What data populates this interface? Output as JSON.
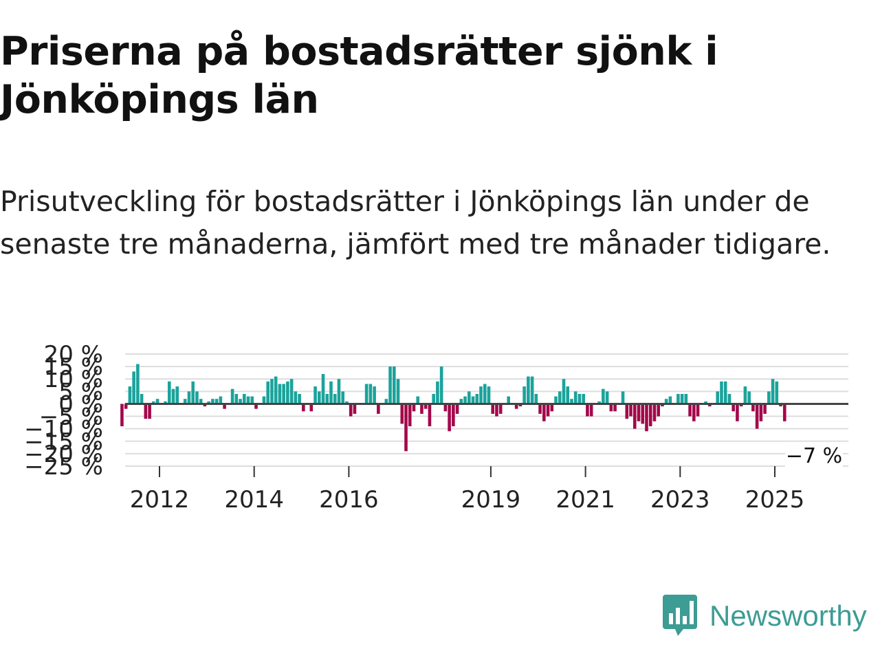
{
  "title": "Priserna på bostadsrätter sjönk i Jönköpings län",
  "subtitle": "Prisutveckling för bostadsrätter i Jönköpings län under de senaste tre månaderna, jämfört med tre månader tidigare.",
  "brand": {
    "name": "Newsworthy",
    "color": "#3d9c94",
    "icon": "newsworthy-logo-icon"
  },
  "chart_data": {
    "type": "bar",
    "title": "Priserna på bostadsrätter sjönk i Jönköpings län",
    "xlabel": "",
    "ylabel": "",
    "ylim": [
      -25,
      20
    ],
    "yticks": [
      20,
      15,
      10,
      5,
      0,
      -5,
      -10,
      -15,
      -20,
      -25
    ],
    "ytick_labels": [
      "20 %",
      "15 %",
      "10 %",
      "5 %",
      "0 %",
      "−5 %",
      "−10 %",
      "−15 %",
      "−20 %",
      "−25 %"
    ],
    "xticks": [
      2012,
      2014,
      2016,
      2019,
      2021,
      2023,
      2025
    ],
    "xtick_labels": [
      "2012",
      "2014",
      "2016",
      "2019",
      "2021",
      "2023",
      "2025"
    ],
    "start": {
      "year": 2011,
      "month": 3
    },
    "colors": {
      "positive": "#1aa39b",
      "negative": "#a3084a",
      "zero_line": "#444444",
      "grid": "#dddddd"
    },
    "values": [
      -9,
      -2,
      7,
      13,
      16,
      4,
      -6,
      -6,
      1,
      2,
      0,
      1,
      9,
      6,
      7,
      0,
      2,
      5,
      9,
      5,
      2,
      -1,
      1,
      2,
      2,
      3,
      -2,
      0,
      6,
      4,
      2,
      4,
      3,
      3,
      -2,
      0,
      3,
      9,
      10,
      11,
      8,
      8,
      9,
      10,
      5,
      4,
      -3,
      0,
      -3,
      7,
      5,
      12,
      4,
      9,
      4,
      10,
      5,
      1,
      -5,
      -4,
      0,
      0,
      8,
      8,
      7,
      -4,
      0,
      2,
      15,
      15,
      10,
      -8,
      -19,
      -9,
      -3,
      3,
      -4,
      -2,
      -9,
      4,
      9,
      15,
      -3,
      -11,
      -9,
      -4,
      2,
      3,
      5,
      3,
      4,
      7,
      8,
      7,
      -4,
      -5,
      -4,
      0,
      3,
      0,
      -2,
      -1,
      7,
      11,
      11,
      4,
      -4,
      -7,
      -5,
      -3,
      3,
      5,
      10,
      7,
      2,
      5,
      4,
      4,
      -5,
      -5,
      0,
      1,
      6,
      5,
      -3,
      -3,
      0,
      5,
      -6,
      -5,
      -10,
      -7,
      -8,
      -11,
      -9,
      -7,
      -5,
      -1,
      2,
      3,
      0,
      4,
      4,
      4,
      -5,
      -7,
      -5,
      0,
      1,
      -1,
      0,
      5,
      9,
      9,
      4,
      -3,
      -7,
      -1,
      7,
      5,
      -3,
      -10,
      -7,
      -4,
      5,
      10,
      9,
      -1,
      -7
    ],
    "last_value_label": "−7 %"
  }
}
